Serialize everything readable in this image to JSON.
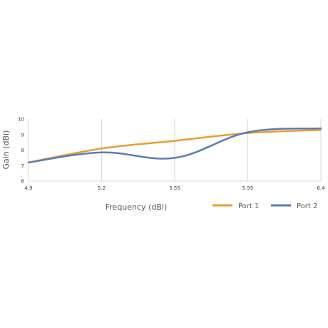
{
  "chart_data": {
    "type": "line",
    "title": "",
    "xlabel": "Frequency (dBi)",
    "ylabel": "Gain (dBi)",
    "x": [
      4.9,
      5.2,
      5.55,
      5.95,
      6.4
    ],
    "xticks": [
      "4.9",
      "5.2",
      "5.55",
      "5.95",
      "6.4"
    ],
    "ylim": [
      6,
      10
    ],
    "yticks": [
      6,
      7,
      8,
      9,
      10
    ],
    "grid": "vertical",
    "legend_position": "bottom-right",
    "series": [
      {
        "name": "Port 1",
        "color": "#ED9B2F",
        "values": [
          7.2,
          8.1,
          8.6,
          9.1,
          9.3
        ]
      },
      {
        "name": "Port 2",
        "color": "#5B7DB3",
        "values": [
          7.2,
          7.85,
          7.5,
          9.15,
          9.4
        ]
      }
    ]
  }
}
